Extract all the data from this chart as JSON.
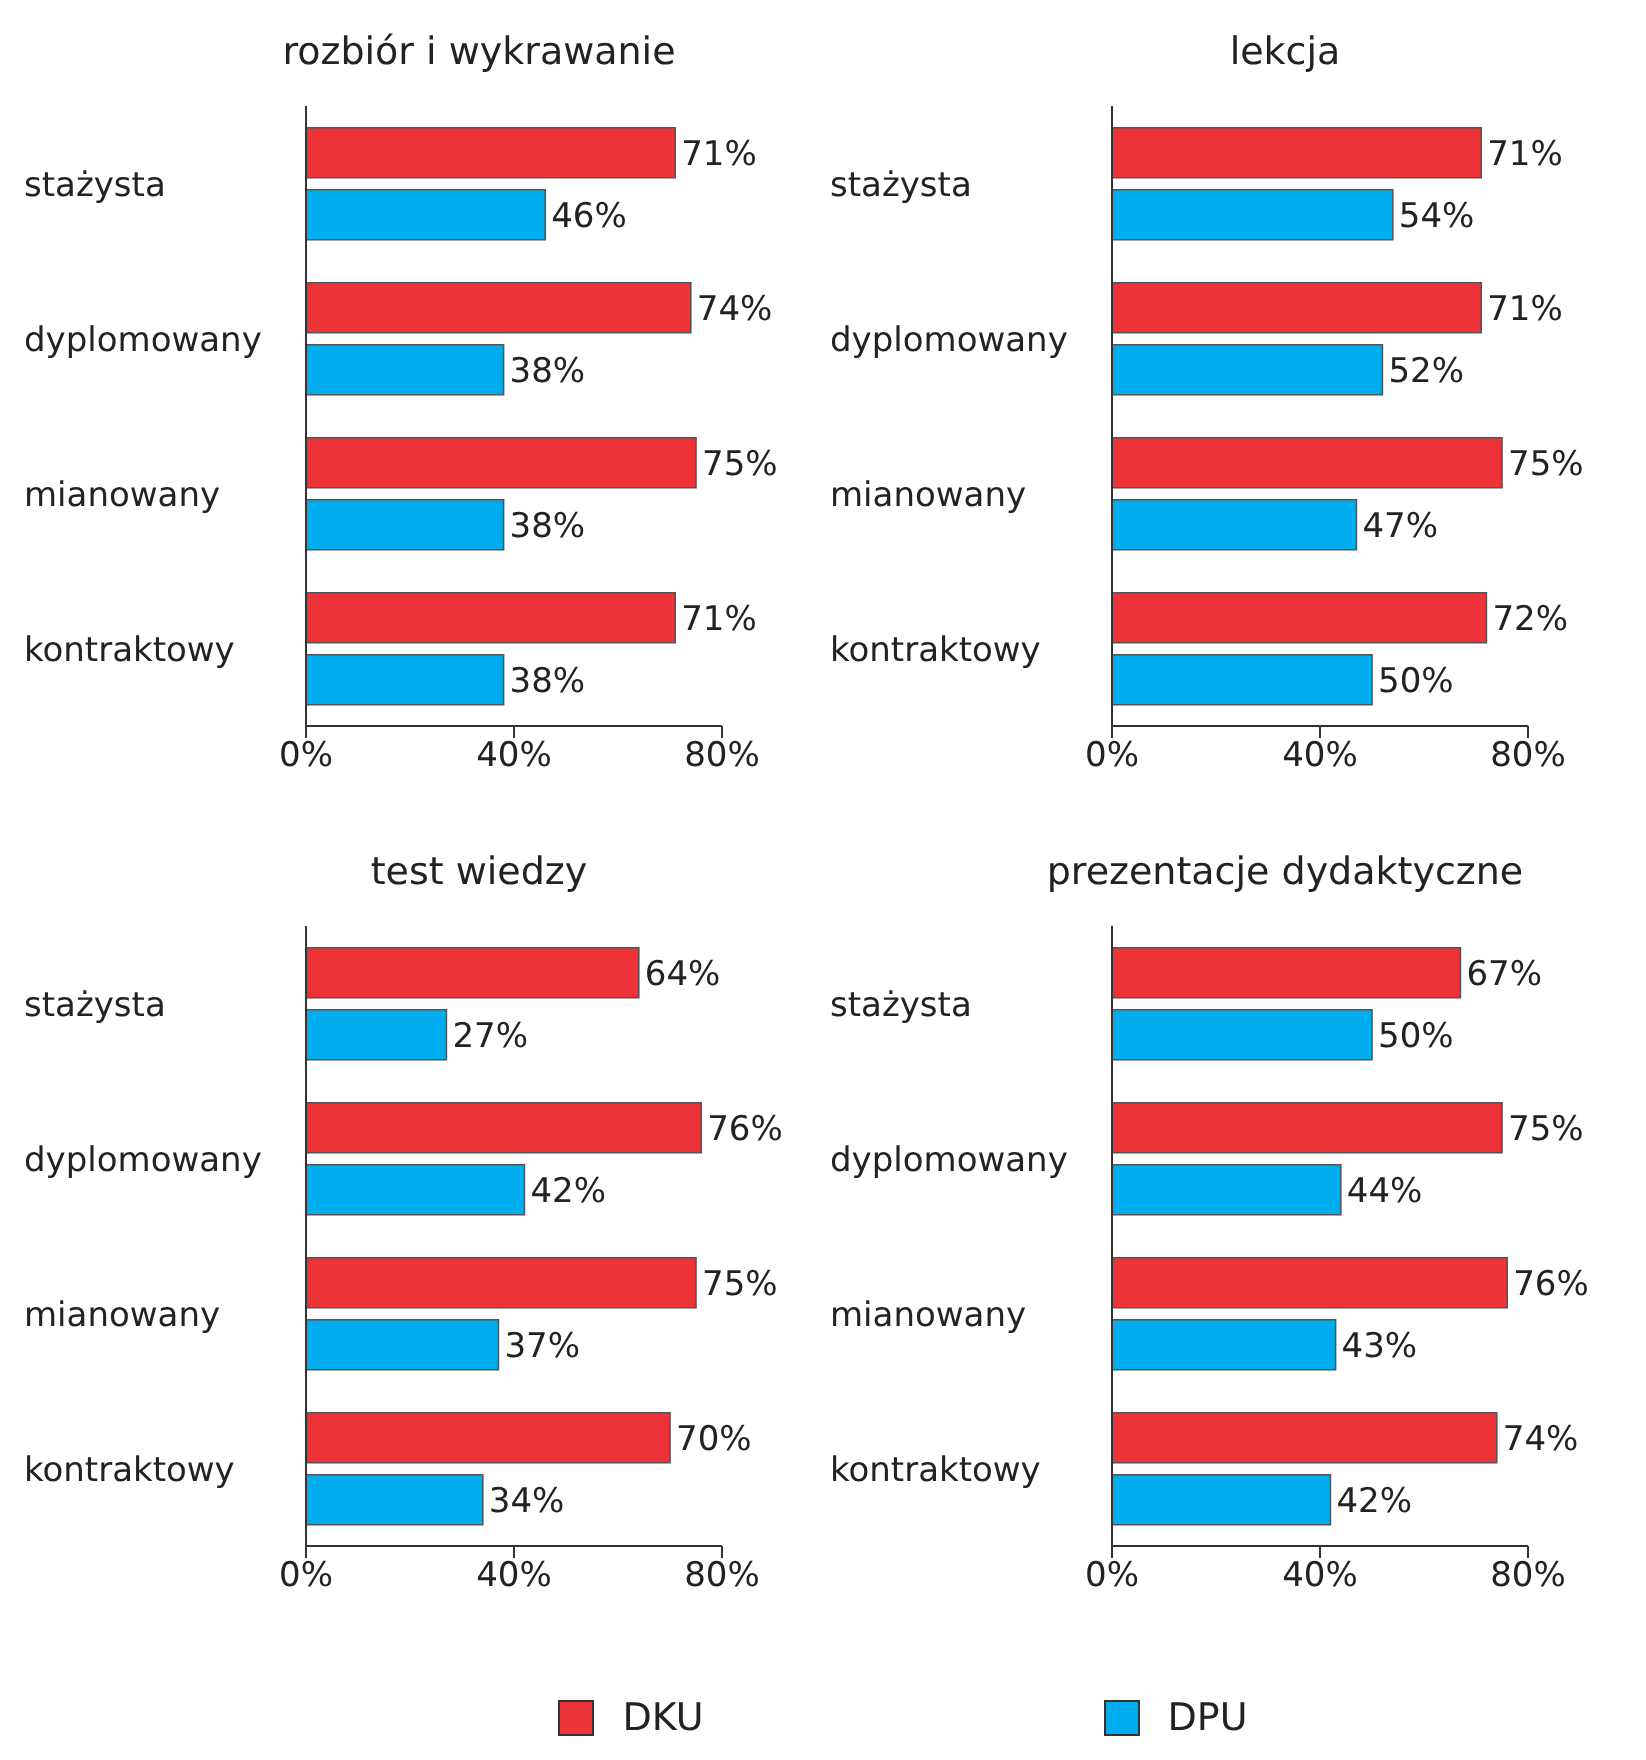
{
  "chart_data": [
    {
      "type": "bar",
      "orientation": "horizontal",
      "title": "rozbiór i wykrawanie",
      "categories": [
        "stażysta",
        "dyplomowany",
        "mianowany",
        "kontraktowy"
      ],
      "xlim": [
        0,
        80
      ],
      "xticks": [
        {
          "value": 0,
          "label": "0%"
        },
        {
          "value": 40,
          "label": "40%"
        },
        {
          "value": 80,
          "label": "80%"
        }
      ],
      "grid": false,
      "legend": "bottom",
      "series": [
        {
          "name": "DKU",
          "color": "#ee3338",
          "values": [
            71,
            74,
            75,
            71
          ],
          "value_labels": [
            "71%",
            "74%",
            "75%",
            "71%"
          ]
        },
        {
          "name": "DPU",
          "color": "#00aeef",
          "values": [
            46,
            38,
            38,
            38
          ],
          "value_labels": [
            "46%",
            "38%",
            "38%",
            "38%"
          ]
        }
      ]
    },
    {
      "type": "bar",
      "orientation": "horizontal",
      "title": "lekcja",
      "categories": [
        "stażysta",
        "dyplomowany",
        "mianowany",
        "kontraktowy"
      ],
      "xlim": [
        0,
        80
      ],
      "xticks": [
        {
          "value": 0,
          "label": "0%"
        },
        {
          "value": 40,
          "label": "40%"
        },
        {
          "value": 80,
          "label": "80%"
        }
      ],
      "grid": false,
      "series": [
        {
          "color": "#ee3338",
          "values": [
            71,
            71,
            75,
            72
          ],
          "value_labels": [
            "71%",
            "71%",
            "75%",
            "72%"
          ]
        },
        {
          "color": "#00aeef",
          "values": [
            54,
            52,
            47,
            50
          ],
          "value_labels": [
            "54%",
            "52%",
            "47%",
            "50%"
          ]
        }
      ]
    },
    {
      "type": "bar",
      "orientation": "horizontal",
      "title": "test wiedzy",
      "categories": [
        "stażysta",
        "dyplomowany",
        "mianowany",
        "kontraktowy"
      ],
      "xlim": [
        0,
        80
      ],
      "xticks": [
        {
          "value": 0,
          "label": "0%"
        },
        {
          "value": 40,
          "label": "40%"
        },
        {
          "value": 80,
          "label": "80%"
        }
      ],
      "grid": false,
      "series": [
        {
          "color": "#ee3338",
          "values": [
            64,
            76,
            75,
            70
          ],
          "value_labels": [
            "64%",
            "76%",
            "75%",
            "70%"
          ]
        },
        {
          "color": "#00aeef",
          "values": [
            27,
            42,
            37,
            34
          ],
          "value_labels": [
            "27%",
            "42%",
            "37%",
            "34%"
          ]
        }
      ]
    },
    {
      "type": "bar",
      "orientation": "horizontal",
      "title": "prezentacje dydaktyczne",
      "categories": [
        "stażysta",
        "dyplomowany",
        "mianowany",
        "kontraktowy"
      ],
      "xlim": [
        0,
        80
      ],
      "xticks": [
        {
          "value": 0,
          "label": "0%"
        },
        {
          "value": 40,
          "label": "40%"
        },
        {
          "value": 80,
          "label": "80%"
        }
      ],
      "grid": false,
      "series": [
        {
          "color": "#ee3338",
          "values": [
            67,
            75,
            76,
            74
          ],
          "value_labels": [
            "67%",
            "75%",
            "76%",
            "74%"
          ]
        },
        {
          "color": "#00aeef",
          "values": [
            50,
            44,
            43,
            42
          ],
          "value_labels": [
            "50%",
            "44%",
            "43%",
            "42%"
          ]
        }
      ]
    }
  ]
}
